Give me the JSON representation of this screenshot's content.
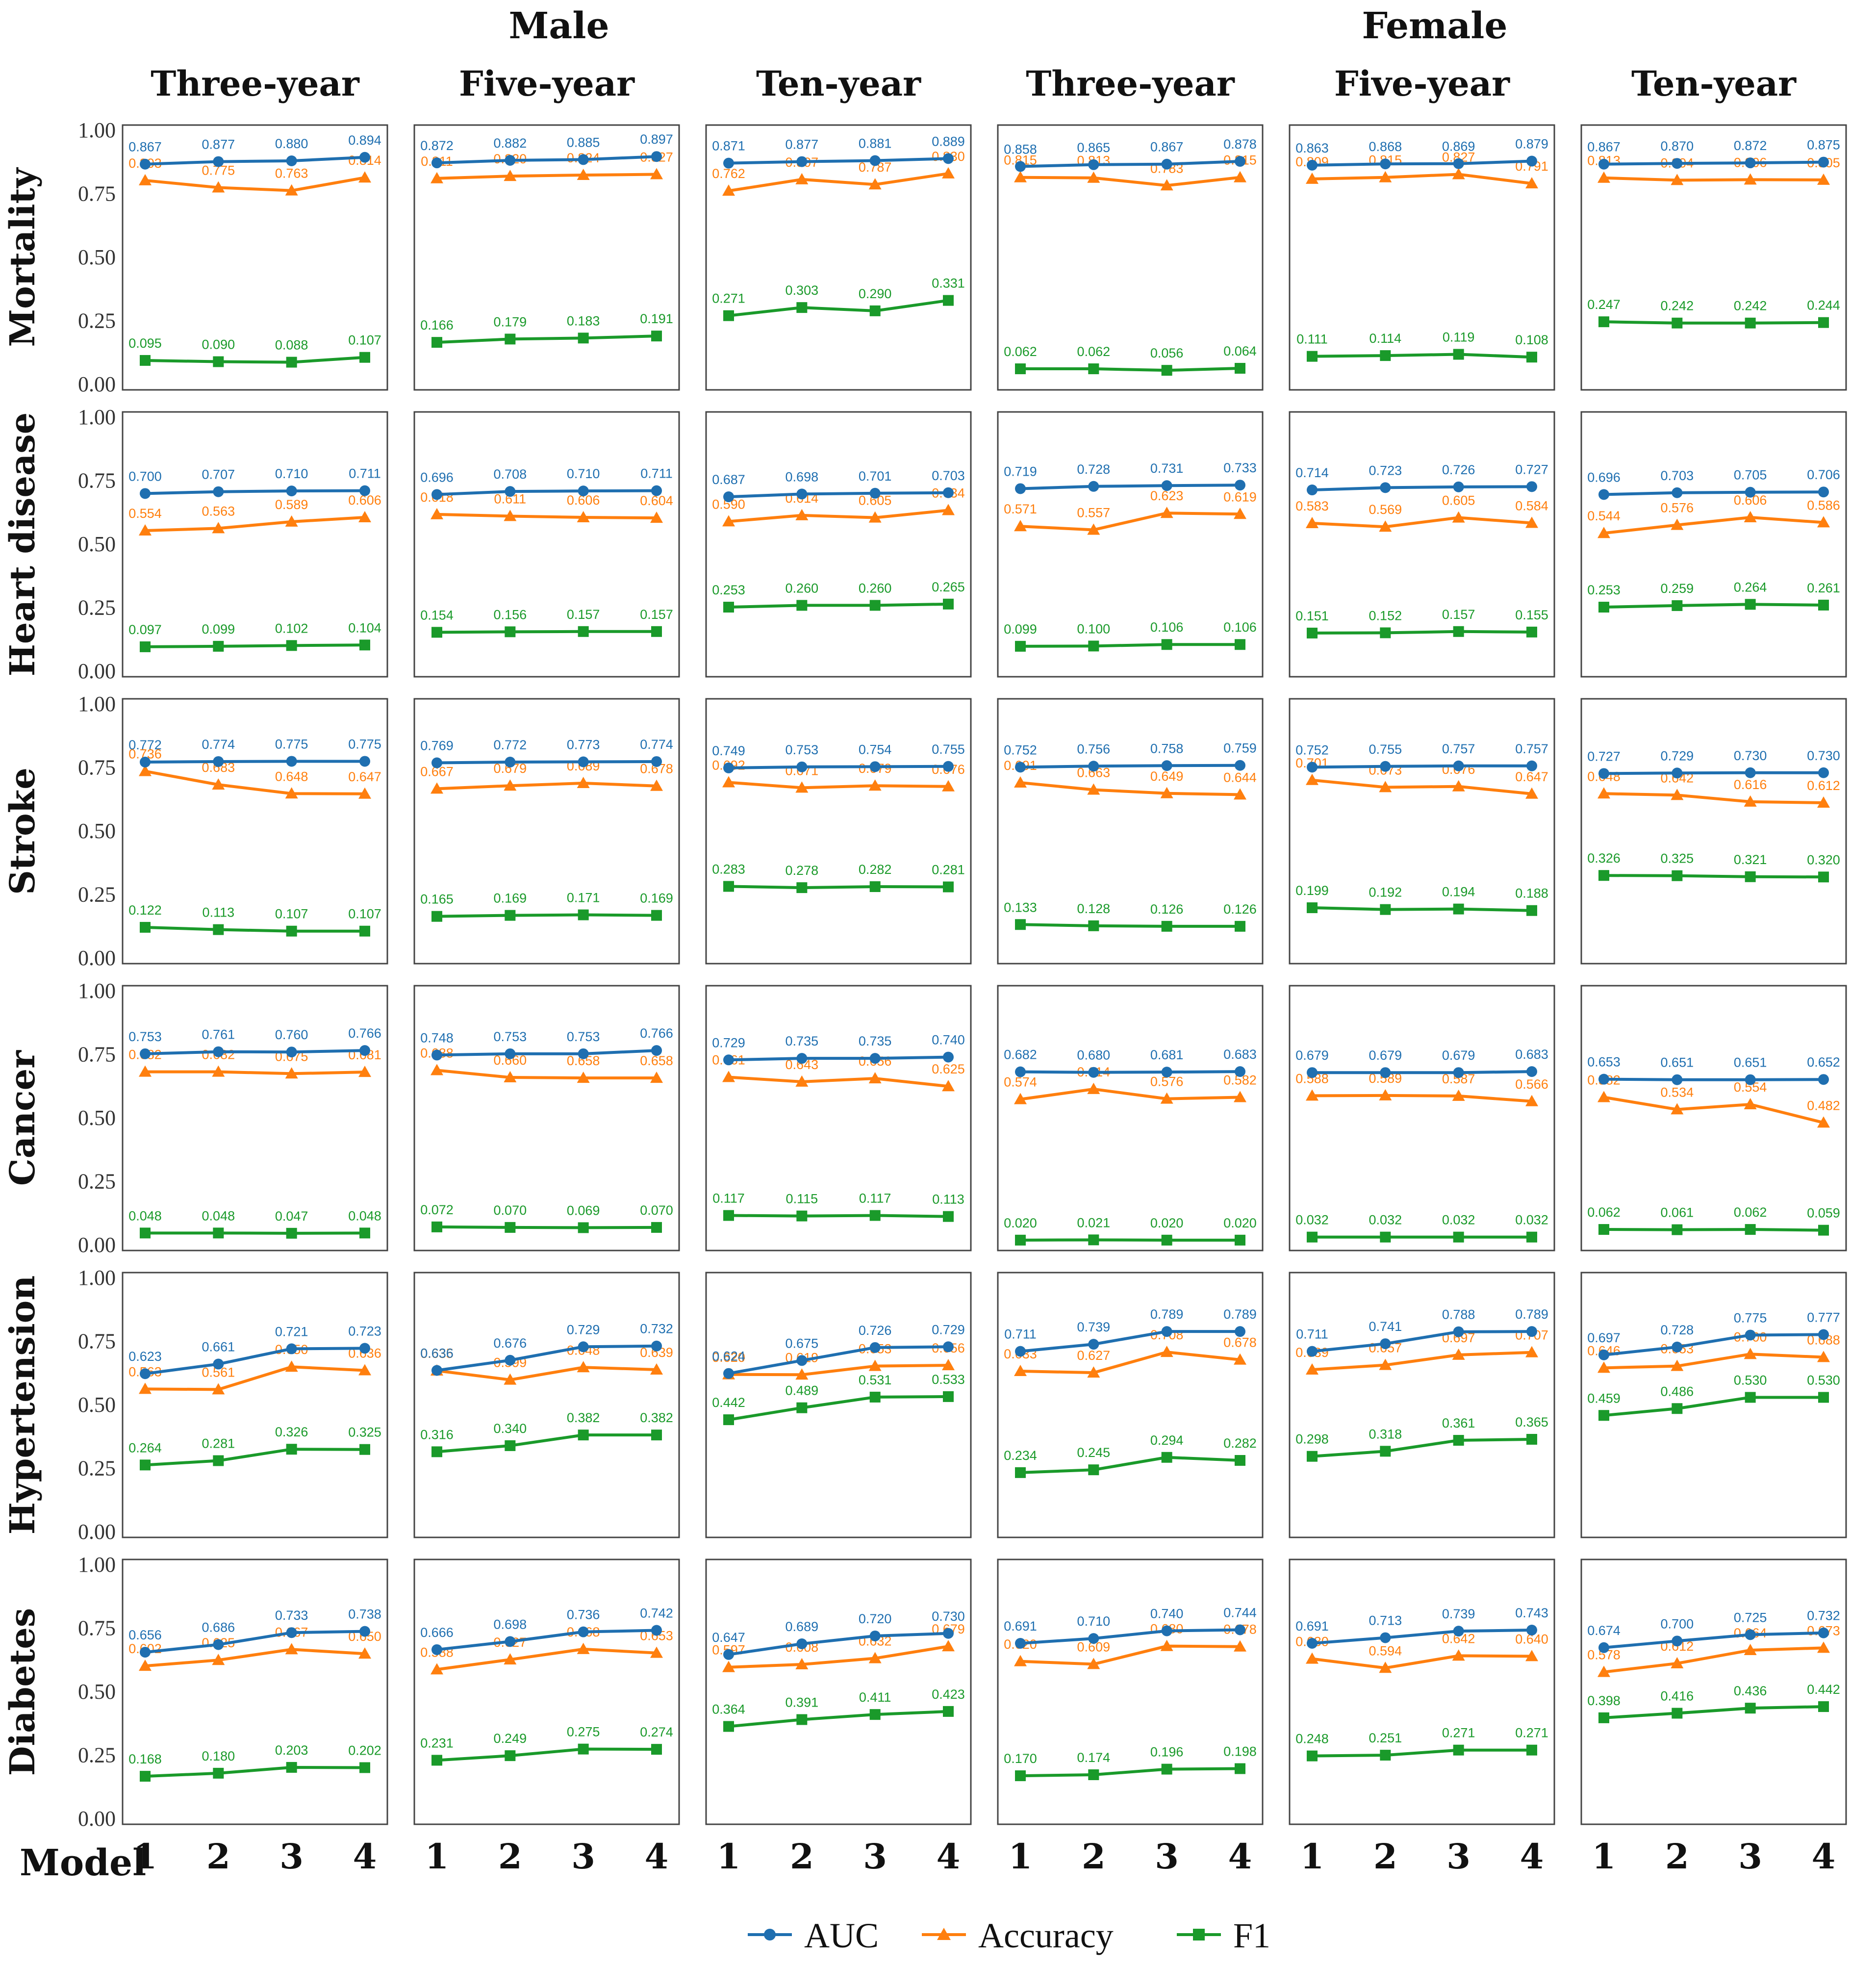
{
  "colors": {
    "AUC": "#1f6fb0",
    "Accuracy": "#ff7f0e",
    "F1": "#1a9a2a"
  },
  "labels": {
    "group_male": "Male",
    "group_female": "Female",
    "x_axis_label": "Model"
  },
  "chart_data": {
    "type": "line",
    "y_ticks": [
      "0.00",
      "0.25",
      "0.50",
      "0.75",
      "1.00"
    ],
    "ylim": [
      0,
      1
    ],
    "x_ticks": [
      "1",
      "2",
      "3",
      "4"
    ],
    "x": [
      1,
      2,
      3,
      4
    ],
    "groups": [
      "Male",
      "Female"
    ],
    "columns": [
      "Three-year",
      "Five-year",
      "Ten-year",
      "Three-year",
      "Five-year",
      "Ten-year"
    ],
    "rows": [
      "Mortality",
      "Heart disease",
      "Stroke",
      "Cancer",
      "Hypertension",
      "Diabetes"
    ],
    "legend": [
      "AUC",
      "Accuracy",
      "F1"
    ],
    "legend_position": "bottom-center",
    "panels": [
      [
        {
          "AUC": [
            "0.867",
            "0.877",
            "0.880",
            "0.894"
          ],
          "Accuracy": [
            "0.803",
            "0.775",
            "0.763",
            "0.814"
          ],
          "F1": [
            "0.095",
            "0.090",
            "0.088",
            "0.107"
          ]
        },
        {
          "AUC": [
            "0.872",
            "0.882",
            "0.885",
            "0.897"
          ],
          "Accuracy": [
            "0.811",
            "0.820",
            "0.824",
            "0.827"
          ],
          "F1": [
            "0.166",
            "0.179",
            "0.183",
            "0.191"
          ]
        },
        {
          "AUC": [
            "0.871",
            "0.877",
            "0.881",
            "0.889"
          ],
          "Accuracy": [
            "0.762",
            "0.807",
            "0.787",
            "0.830"
          ],
          "F1": [
            "0.271",
            "0.303",
            "0.290",
            "0.331"
          ]
        },
        {
          "AUC": [
            "0.858",
            "0.865",
            "0.867",
            "0.878"
          ],
          "Accuracy": [
            "0.815",
            "0.813",
            "0.783",
            "0.815"
          ],
          "F1": [
            "0.062",
            "0.062",
            "0.056",
            "0.064"
          ]
        },
        {
          "AUC": [
            "0.863",
            "0.868",
            "0.869",
            "0.879"
          ],
          "Accuracy": [
            "0.809",
            "0.815",
            "0.827",
            "0.791"
          ],
          "F1": [
            "0.111",
            "0.114",
            "0.119",
            "0.108"
          ]
        },
        {
          "AUC": [
            "0.867",
            "0.870",
            "0.872",
            "0.875"
          ],
          "Accuracy": [
            "0.813",
            "0.804",
            "0.806",
            "0.805"
          ],
          "F1": [
            "0.247",
            "0.242",
            "0.242",
            "0.244"
          ]
        }
      ],
      [
        {
          "AUC": [
            "0.700",
            "0.707",
            "0.710",
            "0.711"
          ],
          "Accuracy": [
            "0.554",
            "0.563",
            "0.589",
            "0.606"
          ],
          "F1": [
            "0.097",
            "0.099",
            "0.102",
            "0.104"
          ]
        },
        {
          "AUC": [
            "0.696",
            "0.708",
            "0.710",
            "0.711"
          ],
          "Accuracy": [
            "0.618",
            "0.611",
            "0.606",
            "0.604"
          ],
          "F1": [
            "0.154",
            "0.156",
            "0.157",
            "0.157"
          ]
        },
        {
          "AUC": [
            "0.687",
            "0.698",
            "0.701",
            "0.703"
          ],
          "Accuracy": [
            "0.590",
            "0.614",
            "0.605",
            "0.634"
          ],
          "F1": [
            "0.253",
            "0.260",
            "0.260",
            "0.265"
          ]
        },
        {
          "AUC": [
            "0.719",
            "0.728",
            "0.731",
            "0.733"
          ],
          "Accuracy": [
            "0.571",
            "0.557",
            "0.623",
            "0.619"
          ],
          "F1": [
            "0.099",
            "0.100",
            "0.106",
            "0.106"
          ]
        },
        {
          "AUC": [
            "0.714",
            "0.723",
            "0.726",
            "0.727"
          ],
          "Accuracy": [
            "0.583",
            "0.569",
            "0.605",
            "0.584"
          ],
          "F1": [
            "0.151",
            "0.152",
            "0.157",
            "0.155"
          ]
        },
        {
          "AUC": [
            "0.696",
            "0.703",
            "0.705",
            "0.706"
          ],
          "Accuracy": [
            "0.544",
            "0.576",
            "0.606",
            "0.586"
          ],
          "F1": [
            "0.253",
            "0.259",
            "0.264",
            "0.261"
          ]
        }
      ],
      [
        {
          "AUC": [
            "0.772",
            "0.774",
            "0.775",
            "0.775"
          ],
          "Accuracy": [
            "0.736",
            "0.683",
            "0.648",
            "0.647"
          ],
          "F1": [
            "0.122",
            "0.113",
            "0.107",
            "0.107"
          ]
        },
        {
          "AUC": [
            "0.769",
            "0.772",
            "0.773",
            "0.774"
          ],
          "Accuracy": [
            "0.667",
            "0.679",
            "0.689",
            "0.678"
          ],
          "F1": [
            "0.165",
            "0.169",
            "0.171",
            "0.169"
          ]
        },
        {
          "AUC": [
            "0.749",
            "0.753",
            "0.754",
            "0.755"
          ],
          "Accuracy": [
            "0.692",
            "0.671",
            "0.679",
            "0.676"
          ],
          "F1": [
            "0.283",
            "0.278",
            "0.282",
            "0.281"
          ]
        },
        {
          "AUC": [
            "0.752",
            "0.756",
            "0.758",
            "0.759"
          ],
          "Accuracy": [
            "0.691",
            "0.663",
            "0.649",
            "0.644"
          ],
          "F1": [
            "0.133",
            "0.128",
            "0.126",
            "0.126"
          ]
        },
        {
          "AUC": [
            "0.752",
            "0.755",
            "0.757",
            "0.757"
          ],
          "Accuracy": [
            "0.701",
            "0.673",
            "0.676",
            "0.647"
          ],
          "F1": [
            "0.199",
            "0.192",
            "0.194",
            "0.188"
          ]
        },
        {
          "AUC": [
            "0.727",
            "0.729",
            "0.730",
            "0.730"
          ],
          "Accuracy": [
            "0.648",
            "0.642",
            "0.616",
            "0.612"
          ],
          "F1": [
            "0.326",
            "0.325",
            "0.321",
            "0.320"
          ]
        }
      ],
      [
        {
          "AUC": [
            "0.753",
            "0.761",
            "0.760",
            "0.766"
          ],
          "Accuracy": [
            "0.682",
            "0.682",
            "0.675",
            "0.681"
          ],
          "F1": [
            "0.048",
            "0.048",
            "0.047",
            "0.048"
          ]
        },
        {
          "AUC": [
            "0.748",
            "0.753",
            "0.753",
            "0.766"
          ],
          "Accuracy": [
            "0.688",
            "0.660",
            "0.658",
            "0.658"
          ],
          "F1": [
            "0.072",
            "0.070",
            "0.069",
            "0.070"
          ]
        },
        {
          "AUC": [
            "0.729",
            "0.735",
            "0.735",
            "0.740"
          ],
          "Accuracy": [
            "0.661",
            "0.643",
            "0.656",
            "0.625"
          ],
          "F1": [
            "0.117",
            "0.115",
            "0.117",
            "0.113"
          ]
        },
        {
          "AUC": [
            "0.682",
            "0.680",
            "0.681",
            "0.683"
          ],
          "Accuracy": [
            "0.574",
            "0.614",
            "0.576",
            "0.582"
          ],
          "F1": [
            "0.020",
            "0.021",
            "0.020",
            "0.020"
          ]
        },
        {
          "AUC": [
            "0.679",
            "0.679",
            "0.679",
            "0.683"
          ],
          "Accuracy": [
            "0.588",
            "0.589",
            "0.587",
            "0.566"
          ],
          "F1": [
            "0.032",
            "0.032",
            "0.032",
            "0.032"
          ]
        },
        {
          "AUC": [
            "0.653",
            "0.651",
            "0.651",
            "0.652"
          ],
          "Accuracy": [
            "0.582",
            "0.534",
            "0.554",
            "0.482"
          ],
          "F1": [
            "0.062",
            "0.061",
            "0.062",
            "0.059"
          ]
        }
      ],
      [
        {
          "AUC": [
            "0.623",
            "0.661",
            "0.721",
            "0.723"
          ],
          "Accuracy": [
            "0.563",
            "0.561",
            "0.650",
            "0.636"
          ],
          "F1": [
            "0.264",
            "0.281",
            "0.326",
            "0.325"
          ]
        },
        {
          "AUC": [
            "0.636",
            "0.676",
            "0.729",
            "0.732"
          ],
          "Accuracy": [
            "0.635",
            "0.599",
            "0.648",
            "0.639"
          ],
          "F1": [
            "0.316",
            "0.340",
            "0.382",
            "0.382"
          ]
        },
        {
          "AUC": [
            "0.624",
            "0.675",
            "0.726",
            "0.729"
          ],
          "Accuracy": [
            "0.620",
            "0.619",
            "0.653",
            "0.656"
          ],
          "F1": [
            "0.442",
            "0.489",
            "0.531",
            "0.533"
          ]
        },
        {
          "AUC": [
            "0.711",
            "0.739",
            "0.789",
            "0.789"
          ],
          "Accuracy": [
            "0.633",
            "0.627",
            "0.708",
            "0.678"
          ],
          "F1": [
            "0.234",
            "0.245",
            "0.294",
            "0.282"
          ]
        },
        {
          "AUC": [
            "0.711",
            "0.741",
            "0.788",
            "0.789"
          ],
          "Accuracy": [
            "0.639",
            "0.657",
            "0.697",
            "0.707"
          ],
          "F1": [
            "0.298",
            "0.318",
            "0.361",
            "0.365"
          ]
        },
        {
          "AUC": [
            "0.697",
            "0.728",
            "0.775",
            "0.777"
          ],
          "Accuracy": [
            "0.646",
            "0.653",
            "0.700",
            "0.688"
          ],
          "F1": [
            "0.459",
            "0.486",
            "0.530",
            "0.530"
          ]
        }
      ],
      [
        {
          "AUC": [
            "0.656",
            "0.686",
            "0.733",
            "0.738"
          ],
          "Accuracy": [
            "0.602",
            "0.625",
            "0.667",
            "0.650"
          ],
          "F1": [
            "0.168",
            "0.180",
            "0.203",
            "0.202"
          ]
        },
        {
          "AUC": [
            "0.666",
            "0.698",
            "0.736",
            "0.742"
          ],
          "Accuracy": [
            "0.588",
            "0.627",
            "0.668",
            "0.653"
          ],
          "F1": [
            "0.231",
            "0.249",
            "0.275",
            "0.274"
          ]
        },
        {
          "AUC": [
            "0.647",
            "0.689",
            "0.720",
            "0.730"
          ],
          "Accuracy": [
            "0.597",
            "0.608",
            "0.632",
            "0.679"
          ],
          "F1": [
            "0.364",
            "0.391",
            "0.411",
            "0.423"
          ]
        },
        {
          "AUC": [
            "0.691",
            "0.710",
            "0.740",
            "0.744"
          ],
          "Accuracy": [
            "0.620",
            "0.609",
            "0.680",
            "0.678"
          ],
          "F1": [
            "0.170",
            "0.174",
            "0.196",
            "0.198"
          ]
        },
        {
          "AUC": [
            "0.691",
            "0.713",
            "0.739",
            "0.743"
          ],
          "Accuracy": [
            "0.630",
            "0.594",
            "0.642",
            "0.640"
          ],
          "F1": [
            "0.248",
            "0.251",
            "0.271",
            "0.271"
          ]
        },
        {
          "AUC": [
            "0.674",
            "0.700",
            "0.725",
            "0.732"
          ],
          "Accuracy": [
            "0.578",
            "0.612",
            "0.664",
            "0.673"
          ],
          "F1": [
            "0.398",
            "0.416",
            "0.436",
            "0.442"
          ]
        }
      ]
    ]
  }
}
